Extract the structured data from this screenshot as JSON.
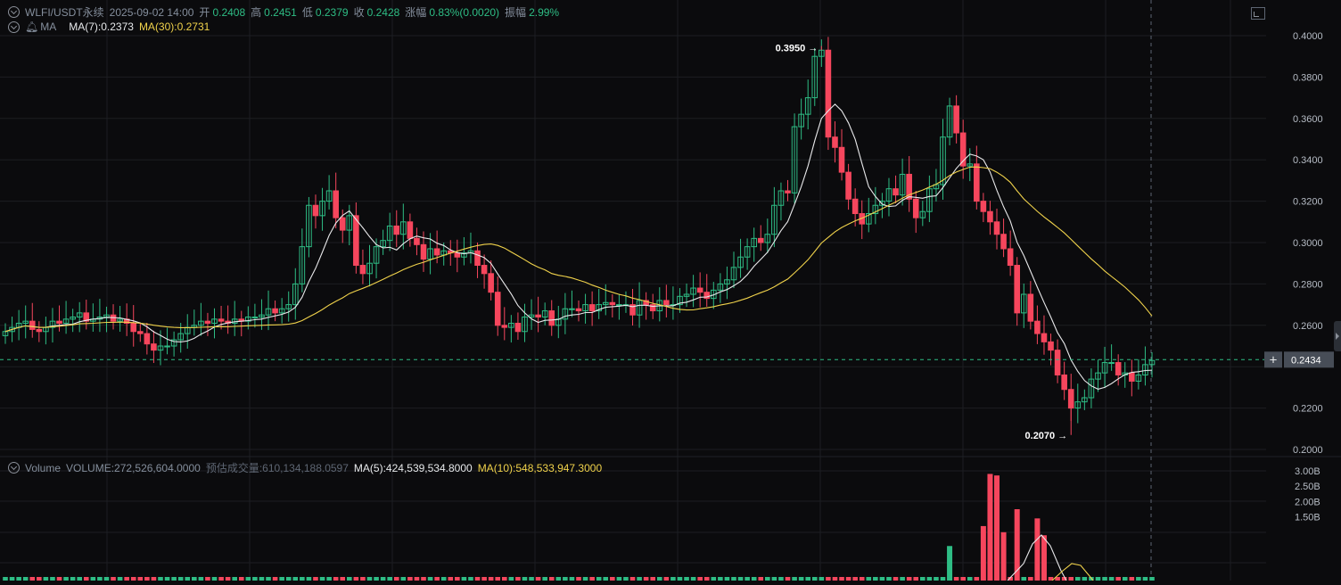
{
  "header": {
    "symbol": "WLFI/USDT永续",
    "datetime": "2025-09-02 14:00",
    "open_label": "开",
    "open": "0.2408",
    "high_label": "高",
    "high": "0.2451",
    "low_label": "低",
    "low": "0.2379",
    "close_label": "收",
    "close": "0.2428",
    "change_label": "涨幅",
    "change": "0.83%(0.0020)",
    "amp_label": "振幅",
    "amp": "2.99%"
  },
  "ma_legend": {
    "name": "MA",
    "ma7": "MA(7):0.2373",
    "ma30": "MA(30):0.2731"
  },
  "volume_legend": {
    "name": "Volume",
    "volume": "VOLUME:272,526,604.0000",
    "est": "预估成交量:610,134,188.0597",
    "ma5": "MA(5):424,539,534.8000",
    "ma10": "MA(10):548,533,947.3000"
  },
  "price_axis": {
    "ticks": [
      "0.4000",
      "0.3800",
      "0.3600",
      "0.3400",
      "0.3200",
      "0.3000",
      "0.2800",
      "0.2600",
      "0.2200",
      "0.2000"
    ],
    "current_price": "0.2434",
    "max_label": "0.3950",
    "min_label": "0.2070"
  },
  "volume_axis": {
    "ticks": [
      "3.00B",
      "2.50B",
      "2.00B",
      "1.50B"
    ]
  },
  "colors": {
    "up": "#2ebd85",
    "down": "#f6465d",
    "ma7": "#e8e8ea",
    "ma30": "#f0d24b",
    "grid": "#1c1e22",
    "current_line": "#2ebd85"
  },
  "icons": [
    "settings-circle-icon",
    "bell-icon",
    "expand-icon",
    "crosshair-plus-icon",
    "collapse-arrow-icon"
  ],
  "chart_data": [
    {
      "type": "candlestick",
      "title": "WLFI/USDT永续",
      "ylim": [
        0.2,
        0.4
      ],
      "series_labels": [
        "MA(7)",
        "MA(30)"
      ],
      "close": [
        0.257,
        0.259,
        0.261,
        0.262,
        0.258,
        0.257,
        0.259,
        0.262,
        0.261,
        0.263,
        0.264,
        0.266,
        0.262,
        0.263,
        0.264,
        0.265,
        0.262,
        0.263,
        0.261,
        0.257,
        0.256,
        0.251,
        0.248,
        0.25,
        0.25,
        0.253,
        0.256,
        0.259,
        0.26,
        0.262,
        0.261,
        0.263,
        0.262,
        0.261,
        0.263,
        0.262,
        0.264,
        0.264,
        0.265,
        0.268,
        0.266,
        0.268,
        0.27,
        0.28,
        0.298,
        0.318,
        0.313,
        0.32,
        0.325,
        0.312,
        0.306,
        0.313,
        0.289,
        0.285,
        0.29,
        0.298,
        0.301,
        0.308,
        0.304,
        0.31,
        0.302,
        0.299,
        0.292,
        0.297,
        0.294,
        0.296,
        0.295,
        0.293,
        0.295,
        0.296,
        0.289,
        0.285,
        0.276,
        0.26,
        0.259,
        0.261,
        0.257,
        0.264,
        0.265,
        0.264,
        0.267,
        0.26,
        0.263,
        0.268,
        0.268,
        0.267,
        0.27,
        0.267,
        0.27,
        0.271,
        0.27,
        0.27,
        0.27,
        0.265,
        0.272,
        0.27,
        0.267,
        0.272,
        0.27,
        0.27,
        0.274,
        0.275,
        0.278,
        0.276,
        0.273,
        0.277,
        0.28,
        0.282,
        0.288,
        0.293,
        0.298,
        0.302,
        0.3,
        0.304,
        0.318,
        0.325,
        0.324,
        0.356,
        0.362,
        0.37,
        0.39,
        0.393,
        0.351,
        0.346,
        0.334,
        0.321,
        0.314,
        0.309,
        0.314,
        0.318,
        0.32,
        0.326,
        0.323,
        0.333,
        0.321,
        0.312,
        0.315,
        0.326,
        0.328,
        0.351,
        0.366,
        0.353,
        0.337,
        0.338,
        0.32,
        0.315,
        0.31,
        0.304,
        0.297,
        0.289,
        0.266,
        0.275,
        0.262,
        0.256,
        0.252,
        0.248,
        0.236,
        0.229,
        0.22,
        0.223,
        0.225,
        0.234,
        0.237,
        0.242,
        0.242,
        0.236,
        0.237,
        0.233,
        0.236,
        0.241,
        0.243
      ],
      "highlight": {
        "max": 0.395,
        "min": 0.207,
        "current": 0.2434
      }
    },
    {
      "type": "bar",
      "title": "Volume",
      "ylim": [
        0,
        3.1
      ],
      "unit": "B",
      "series_labels": [
        "MA(5)",
        "MA(10)"
      ],
      "note_values": "last visible bars around 1.3B-2.9B near the dump"
    }
  ]
}
